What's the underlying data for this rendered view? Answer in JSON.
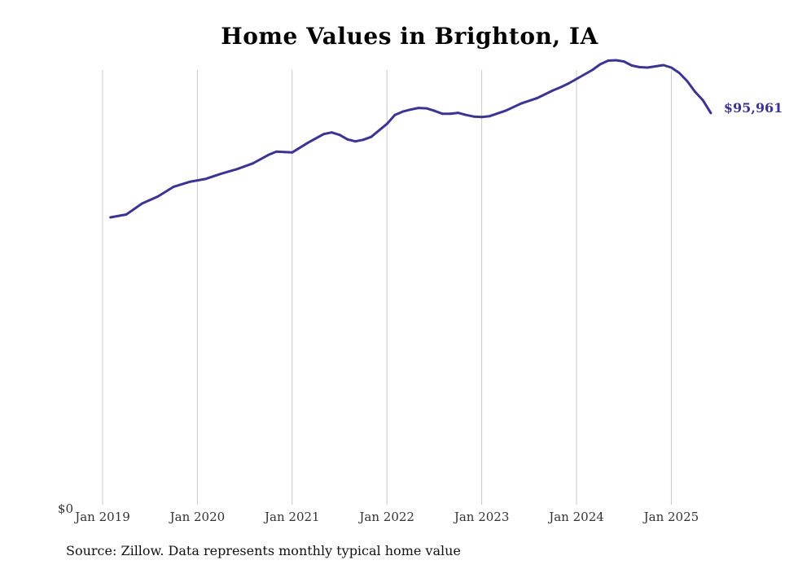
{
  "chart_data": {
    "type": "line",
    "title": "Home Values in Brighton, IA",
    "xlabel": "",
    "ylabel": "",
    "y_tick_labels": [
      "$0"
    ],
    "x_tick_labels": [
      "Jan 2019",
      "Jan 2020",
      "Jan 2021",
      "Jan 2022",
      "Jan 2023",
      "Jan 2024",
      "Jan 2025"
    ],
    "ylim": [
      0,
      106500
    ],
    "grid": "vertical",
    "line_color": "#3b3493",
    "end_label": "$95,961",
    "series": [
      {
        "x": [
          "2019-02",
          "2019-04",
          "2019-06",
          "2019-08",
          "2019-10",
          "2019-12",
          "2020-02",
          "2020-04",
          "2020-06",
          "2020-08",
          "2020-10",
          "2020-11",
          "2020-12",
          "2021-01",
          "2021-03",
          "2021-05",
          "2021-06",
          "2021-07",
          "2021-08",
          "2021-09",
          "2021-10",
          "2021-11",
          "2022-01",
          "2022-02",
          "2022-03",
          "2022-04",
          "2022-05",
          "2022-06",
          "2022-07",
          "2022-08",
          "2022-09",
          "2022-10",
          "2022-11",
          "2022-12",
          "2023-01",
          "2023-02",
          "2023-04",
          "2023-06",
          "2023-08",
          "2023-10",
          "2023-11",
          "2023-12",
          "2024-01",
          "2024-03",
          "2024-04",
          "2024-05",
          "2024-06",
          "2024-07",
          "2024-08",
          "2024-09",
          "2024-10",
          "2024-11",
          "2024-12",
          "2025-01",
          "2025-02",
          "2025-03",
          "2025-04",
          "2025-05",
          "2025-06"
        ],
        "values": [
          70400,
          71100,
          73800,
          75500,
          77900,
          79100,
          79800,
          81100,
          82200,
          83600,
          85700,
          86500,
          86400,
          86300,
          88700,
          90800,
          91200,
          90600,
          89500,
          89000,
          89400,
          90100,
          93300,
          95500,
          96300,
          96800,
          97200,
          97100,
          96500,
          95800,
          95800,
          96000,
          95500,
          95100,
          95000,
          95200,
          96500,
          98300,
          99600,
          101500,
          102300,
          103200,
          104300,
          106500,
          107900,
          108800,
          108900,
          108600,
          107600,
          107200,
          107100,
          107400,
          107700,
          107100,
          105800,
          103800,
          101200,
          99100,
          95961
        ]
      }
    ]
  },
  "source_note": "Source: Zillow. Data represents monthly typical home value"
}
